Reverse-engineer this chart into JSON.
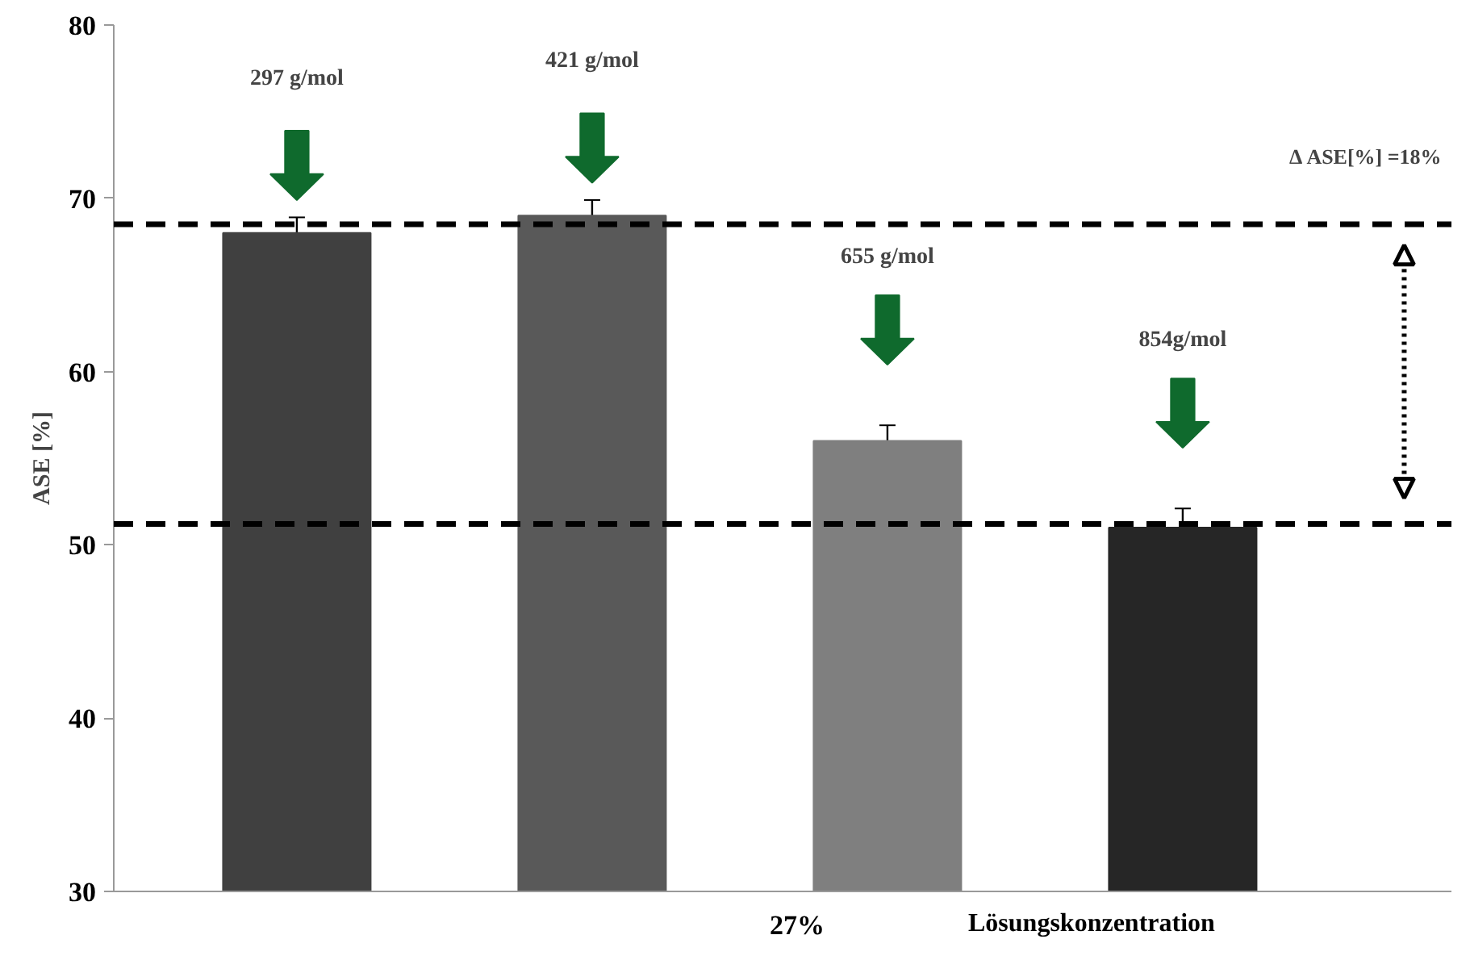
{
  "chart_data": {
    "type": "bar",
    "ylabel": "ASE [%]",
    "xlabel": "Lösungskonzentration",
    "categories": [
      null,
      null,
      null,
      null
    ],
    "values": [
      68,
      69,
      56,
      51
    ],
    "colors": [
      "#404040",
      "#595959",
      "#7f7f7f",
      "#262626"
    ],
    "errors": [
      0.9,
      0.9,
      0.9,
      1.1
    ],
    "ylim": [
      30,
      80
    ],
    "yticks": [
      30,
      40,
      50,
      60,
      70,
      80
    ],
    "grid": false,
    "ref_lines": [
      {
        "axis": "y",
        "value": 68.5,
        "label": null,
        "color": "#000000",
        "line_style": "dashed"
      },
      {
        "axis": "y",
        "value": 51.2,
        "label": null,
        "color": "#000000",
        "line_style": "dashed"
      }
    ],
    "annotations": [
      "297 g/mol",
      "421 g/mol",
      "655 g/mol",
      "854g/mol",
      "Δ ASE[%] =18%",
      "27%"
    ]
  }
}
